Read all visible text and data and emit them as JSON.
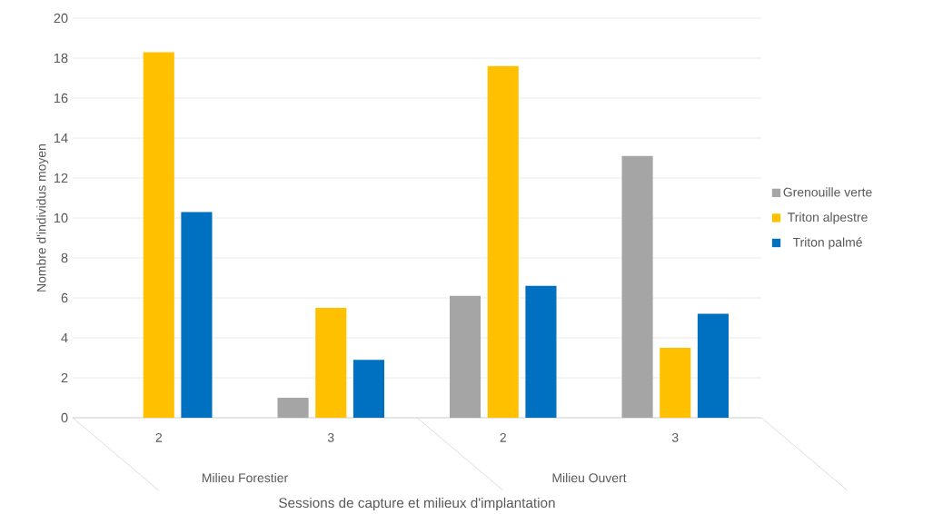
{
  "chart_data": {
    "type": "bar",
    "ylabel": "Nombre d'individus moyen",
    "xlabel": "Sessions de capture et milieux d'implantation",
    "categories": [
      "2",
      "3",
      "2",
      "3"
    ],
    "annotations": [
      "Milieu Forestier",
      "Milieu Ouvert"
    ],
    "series": [
      {
        "name": "Grenouille verte",
        "color": "#a5a5a5",
        "values": [
          0,
          1.0,
          6.1,
          13.1
        ]
      },
      {
        "name": "Triton alpestre",
        "color": "#ffc000",
        "values": [
          18.3,
          5.5,
          17.6,
          3.5
        ]
      },
      {
        "name": "Triton palmé",
        "color": "#0070c0",
        "values": [
          10.3,
          2.9,
          6.6,
          5.2
        ]
      }
    ],
    "ylim": [
      0,
      20
    ],
    "yticks": [
      0,
      2,
      4,
      6,
      8,
      10,
      12,
      14,
      16,
      18,
      20
    ],
    "grid": "y",
    "legend": "right"
  }
}
